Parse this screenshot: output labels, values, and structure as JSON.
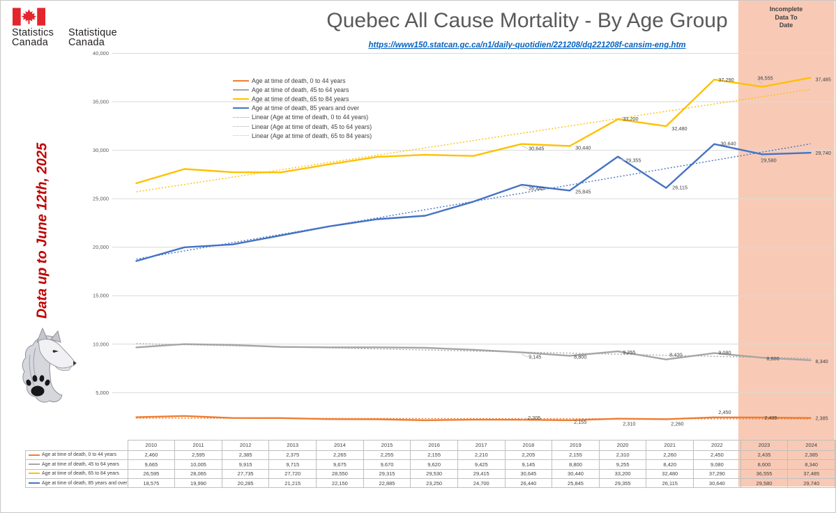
{
  "header": {
    "title": "Quebec All Cause Mortality - By Age Group",
    "url": "https://www150.statcan.gc.ca/n1/daily-quotidien/221208/dq221208f-cansim-eng.htm",
    "incomplete_lines": [
      "Incomplete",
      "Data To",
      "Date"
    ],
    "logo": {
      "en_line1": "Statistics",
      "en_line2": "Canada",
      "fr_line1": "Statistique",
      "fr_line2": "Canada"
    }
  },
  "side_note": "Data up to June 12th, 2025",
  "colors": {
    "orange": "#ED7D31",
    "gray": "#A5A5A5",
    "gold": "#FFC000",
    "blue": "#4472C4",
    "incomplete_fill": "#F8CAB6",
    "grid": "#D9D9D9",
    "table_border": "#BFBFBF",
    "text_dark": "#404040",
    "axis_text": "#595959",
    "link_blue": "#0563C1",
    "note_red": "#C00000",
    "flag_red": "#E4262C"
  },
  "chart_data": {
    "type": "line",
    "x": [
      2010,
      2011,
      2012,
      2013,
      2014,
      2015,
      2016,
      2017,
      2018,
      2019,
      2020,
      2021,
      2022,
      2023,
      2024
    ],
    "series": [
      {
        "id": "0-44",
        "name": "Age at time of death, 0 to 44 years",
        "color": "#ED7D31",
        "trendline": true,
        "values": [
          2460,
          2595,
          2385,
          2375,
          2265,
          2255,
          2155,
          2210,
          2205,
          2155,
          2310,
          2260,
          2450,
          2435,
          2385
        ]
      },
      {
        "id": "45-64",
        "name": "Age at time of death, 45 to 64 years",
        "color": "#A5A5A5",
        "trendline": true,
        "values": [
          9665,
          10005,
          9915,
          9715,
          9675,
          9670,
          9620,
          9425,
          9145,
          8800,
          9255,
          8420,
          9080,
          8600,
          8340
        ]
      },
      {
        "id": "65-84",
        "name": "Age at time of death, 65 to 84 years",
        "color": "#FFC000",
        "trendline": true,
        "values": [
          26595,
          28065,
          27735,
          27720,
          28550,
          29315,
          29530,
          29415,
          30645,
          30440,
          33200,
          32480,
          37290,
          36555,
          37485
        ]
      },
      {
        "id": "85plus",
        "name": "Age at time of death, 85 years and over",
        "color": "#4472C4",
        "trendline": true,
        "values": [
          18575,
          19990,
          20285,
          21215,
          22150,
          22885,
          23250,
          24700,
          26440,
          25845,
          29355,
          26115,
          30640,
          29580,
          29740
        ]
      }
    ],
    "legend": [
      {
        "label": "Age at time of death, 0 to 44 years",
        "color": "#ED7D31",
        "style": "solid"
      },
      {
        "label": "Age at time of death, 45 to 64 years",
        "color": "#A5A5A5",
        "style": "solid"
      },
      {
        "label": "Age at time of death, 65 to 84 years",
        "color": "#FFC000",
        "style": "solid"
      },
      {
        "label": "Age at time of death, 85 years and over",
        "color": "#4472C4",
        "style": "solid"
      },
      {
        "label": "Linear (Age at time of death, 0 to 44 years)",
        "color": "#ED7D31",
        "style": "dotted"
      },
      {
        "label": "Linear (Age at time of death, 45 to 64 years)",
        "color": "#A5A5A5",
        "style": "dotted"
      },
      {
        "label": "Linear (Age at time of death, 65 to 84 years)",
        "color": "#FFC000",
        "style": "dotted"
      }
    ],
    "ylim": [
      0,
      40000
    ],
    "yticks": [
      5000,
      10000,
      15000,
      20000,
      25000,
      30000,
      35000,
      40000
    ],
    "grid": true,
    "legend_position": "inside-top-left",
    "labeled_years": [
      2018,
      2019,
      2020,
      2021,
      2022,
      2023,
      2024
    ],
    "incomplete_years": [
      2023,
      2024
    ]
  }
}
